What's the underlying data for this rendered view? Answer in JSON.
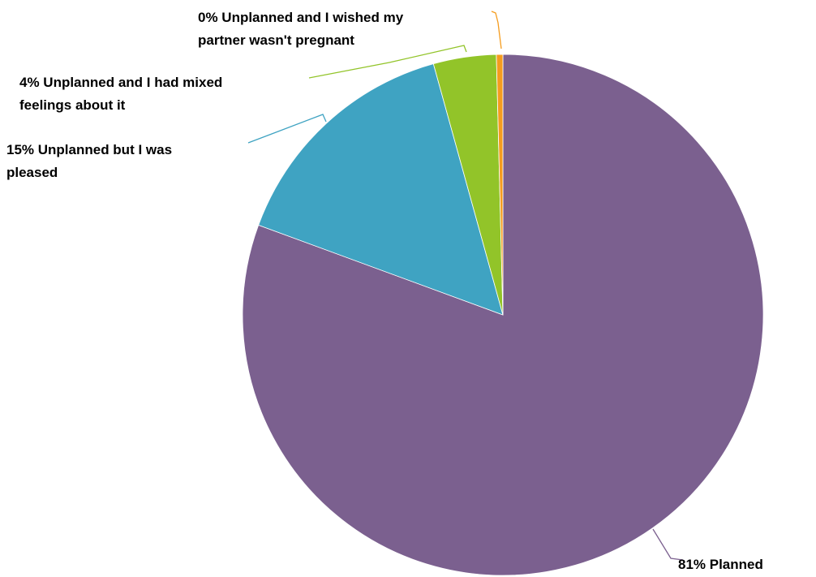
{
  "chart_data": {
    "type": "pie",
    "title": "",
    "start_angle_deg": 0,
    "direction": "clockwise",
    "slices": [
      {
        "key": "planned",
        "label_lines": [
          "81% Planned"
        ],
        "value": 80.6,
        "color": "#7B608F"
      },
      {
        "key": "unplanned-pleased",
        "label_lines": [
          "15% Unplanned but I was",
          "pleased"
        ],
        "value": 15.1,
        "color": "#3FA3C2"
      },
      {
        "key": "unplanned-mixed",
        "label_lines": [
          "4% Unplanned and I had mixed",
          "feelings about it"
        ],
        "value": 3.9,
        "color": "#92C429"
      },
      {
        "key": "unplanned-wished-not",
        "label_lines": [
          "0% Unplanned and I wished my",
          "partner wasn't pregnant"
        ],
        "value": 0.4,
        "color": "#F59C1E"
      }
    ]
  }
}
